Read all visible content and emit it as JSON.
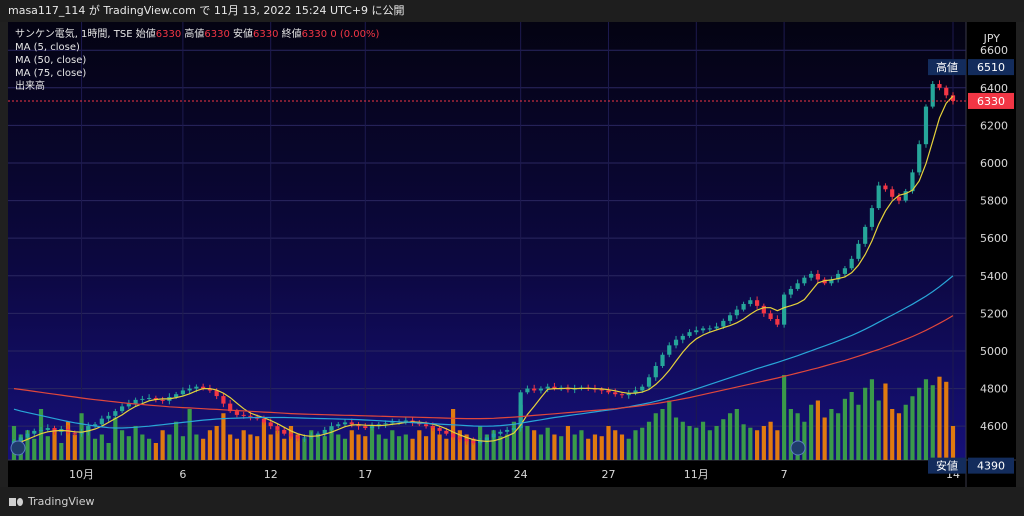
{
  "header": {
    "publish_line": "masa117_114 が TradingView.com で 11月 13, 2022 15:24 UTC+9 に公開"
  },
  "legend": {
    "symbol_line": "サンケン電気, 1時間, TSE",
    "ohlc": [
      {
        "label": "始値",
        "value": "6330"
      },
      {
        "label": "高値",
        "value": "6330"
      },
      {
        "label": "安値",
        "value": "6330"
      },
      {
        "label": "終値",
        "value": "6330"
      }
    ],
    "change": "0 (0.00%)",
    "indicators": [
      "MA (5, close)",
      "MA (50, close)",
      "MA (75, close)",
      "出来高"
    ]
  },
  "footer": {
    "brand": "TradingView"
  },
  "chart_data": {
    "type": "candlestick",
    "symbol": "サンケン電気",
    "interval": "1時間",
    "exchange": "TSE",
    "currency": "JPY",
    "ylim": [
      4420,
      6750
    ],
    "y_ticks": [
      4600,
      4800,
      5000,
      5200,
      5400,
      5600,
      5800,
      6000,
      6200,
      6400,
      6600
    ],
    "x_ticks": [
      {
        "label": "10月",
        "index": 10
      },
      {
        "label": "6",
        "index": 25
      },
      {
        "label": "12",
        "index": 38
      },
      {
        "label": "17",
        "index": 52
      },
      {
        "label": "24",
        "index": 75
      },
      {
        "label": "27",
        "index": 88
      },
      {
        "label": "11月",
        "index": 101
      },
      {
        "label": "7",
        "index": 114
      },
      {
        "label": "14",
        "index": 139
      }
    ],
    "price_labels": {
      "high_label": "高値",
      "high": 6510,
      "last": 6330,
      "low_label": "安値",
      "low": 4390
    },
    "close": [
      4520,
      4540,
      4560,
      4575,
      4580,
      4590,
      4570,
      4585,
      4565,
      4560,
      4570,
      4600,
      4610,
      4640,
      4655,
      4680,
      4705,
      4720,
      4740,
      4745,
      4750,
      4740,
      4735,
      4755,
      4770,
      4790,
      4800,
      4810,
      4800,
      4790,
      4760,
      4720,
      4680,
      4660,
      4655,
      4650,
      4640,
      4620,
      4600,
      4580,
      4560,
      4545,
      4535,
      4540,
      4550,
      4560,
      4580,
      4600,
      4610,
      4620,
      4610,
      4600,
      4590,
      4600,
      4610,
      4615,
      4620,
      4625,
      4630,
      4620,
      4610,
      4600,
      4590,
      4575,
      4560,
      4540,
      4530,
      4520,
      4510,
      4525,
      4540,
      4560,
      4570,
      4580,
      4590,
      4780,
      4800,
      4790,
      4800,
      4810,
      4800,
      4805,
      4795,
      4800,
      4805,
      4800,
      4795,
      4790,
      4780,
      4770,
      4765,
      4775,
      4790,
      4810,
      4860,
      4920,
      4980,
      5030,
      5060,
      5080,
      5100,
      5110,
      5120,
      5120,
      5130,
      5160,
      5190,
      5220,
      5250,
      5270,
      5240,
      5200,
      5170,
      5140,
      5300,
      5330,
      5360,
      5390,
      5410,
      5380,
      5360,
      5380,
      5410,
      5440,
      5490,
      5570,
      5660,
      5760,
      5880,
      5860,
      5820,
      5800,
      5850,
      5950,
      6100,
      6300,
      6420,
      6400,
      6360,
      6330
    ],
    "volume": [
      40,
      30,
      35,
      25,
      60,
      28,
      35,
      20,
      45,
      30,
      55,
      40,
      25,
      30,
      20,
      50,
      35,
      28,
      40,
      30,
      25,
      20,
      35,
      30,
      45,
      28,
      60,
      30,
      25,
      35,
      40,
      55,
      30,
      25,
      35,
      30,
      28,
      45,
      30,
      35,
      25,
      40,
      30,
      25,
      35,
      30,
      28,
      38,
      30,
      25,
      35,
      30,
      28,
      40,
      30,
      25,
      35,
      28,
      30,
      25,
      35,
      28,
      40,
      30,
      25,
      60,
      35,
      30,
      25,
      40,
      30,
      35,
      28,
      30,
      45,
      65,
      40,
      35,
      30,
      38,
      30,
      28,
      40,
      30,
      35,
      25,
      30,
      28,
      40,
      35,
      30,
      25,
      35,
      38,
      45,
      55,
      60,
      70,
      50,
      45,
      40,
      38,
      45,
      35,
      40,
      48,
      55,
      60,
      42,
      38,
      35,
      40,
      45,
      35,
      100,
      60,
      55,
      45,
      65,
      70,
      50,
      60,
      55,
      72,
      80,
      65,
      85,
      95,
      70,
      90,
      60,
      55,
      65,
      75,
      85,
      95,
      88,
      98,
      92,
      40
    ],
    "series": [
      {
        "name": "MA (5, close)",
        "type": "line",
        "color": "#e6d23a",
        "values": [
          4500,
          4515,
          4530,
          4545,
          4560,
          4570,
          4575,
          4577,
          4575,
          4570,
          4568,
          4575,
          4585,
          4600,
          4620,
          4640,
          4660,
          4685,
          4705,
          4720,
          4735,
          4742,
          4745,
          4745,
          4752,
          4760,
          4772,
          4788,
          4800,
          4800,
          4792,
          4776,
          4752,
          4722,
          4693,
          4670,
          4656,
          4645,
          4630,
          4613,
          4594,
          4575,
          4560,
          4550,
          4546,
          4548,
          4557,
          4568,
          4583,
          4597,
          4606,
          4608,
          4605,
          4604,
          4603,
          4605,
          4610,
          4614,
          4620,
          4623,
          4621,
          4617,
          4611,
          4600,
          4586,
          4569,
          4553,
          4540,
          4528,
          4522,
          4519,
          4522,
          4532,
          4547,
          4563,
          4606,
          4662,
          4706,
          4752,
          4796,
          4800,
          4800,
          4802,
          4800,
          4801,
          4801,
          4800,
          4798,
          4794,
          4788,
          4780,
          4775,
          4776,
          4781,
          4795,
          4822,
          4856,
          4897,
          4946,
          4994,
          5034,
          5065,
          5085,
          5100,
          5112,
          5124,
          5135,
          5150,
          5170,
          5195,
          5218,
          5230,
          5230,
          5214,
          5230,
          5241,
          5253,
          5274,
          5318,
          5362,
          5374,
          5378,
          5385,
          5394,
          5417,
          5456,
          5513,
          5585,
          5674,
          5744,
          5797,
          5828,
          5837,
          5855,
          5904,
          5997,
          6116,
          6240,
          6318,
          6356
        ]
      },
      {
        "name": "MA (50, close)",
        "type": "line",
        "color": "#29a6d8",
        "values": [
          4690,
          4680,
          4672,
          4664,
          4656,
          4648,
          4640,
          4632,
          4625,
          4618,
          4612,
          4606,
          4601,
          4596,
          4592,
          4590,
          4590,
          4592,
          4594,
          4597,
          4600,
          4604,
          4608,
          4612,
          4616,
          4620,
          4624,
          4628,
          4632,
          4635,
          4638,
          4640,
          4642,
          4643,
          4644,
          4645,
          4646,
          4646,
          4646,
          4646,
          4646,
          4645,
          4644,
          4643,
          4642,
          4641,
          4640,
          4639,
          4638,
          4637,
          4636,
          4635,
          4633,
          4631,
          4629,
          4627,
          4625,
          4623,
          4621,
          4619,
          4617,
          4615,
          4613,
          4611,
          4609,
          4607,
          4605,
          4603,
          4601,
          4600,
          4600,
          4601,
          4603,
          4606,
          4610,
          4616,
          4622,
          4628,
          4634,
          4640,
          4646,
          4651,
          4656,
          4661,
          4666,
          4671,
          4676,
          4681,
          4686,
          4691,
          4697,
          4703,
          4710,
          4717,
          4724,
          4732,
          4741,
          4751,
          4762,
          4774,
          4786,
          4798,
          4810,
          4822,
          4834,
          4846,
          4858,
          4870,
          4882,
          4894,
          4906,
          4917,
          4928,
          4939,
          4951,
          4963,
          4975,
          4988,
          5001,
          5014,
          5027,
          5040,
          5054,
          5068,
          5083,
          5099,
          5116,
          5134,
          5153,
          5172,
          5191,
          5210,
          5229,
          5249,
          5270,
          5292,
          5316,
          5342,
          5370,
          5400
        ]
      },
      {
        "name": "MA (75, close)",
        "type": "line",
        "color": "#e0473c",
        "values": [
          4800,
          4795,
          4790,
          4785,
          4780,
          4775,
          4770,
          4765,
          4760,
          4755,
          4750,
          4745,
          4741,
          4737,
          4733,
          4729,
          4725,
          4721,
          4718,
          4715,
          4712,
          4709,
          4706,
          4703,
          4701,
          4699,
          4697,
          4695,
          4693,
          4691,
          4689,
          4687,
          4685,
          4683,
          4681,
          4679,
          4677,
          4675,
          4673,
          4671,
          4669,
          4667,
          4665,
          4664,
          4663,
          4662,
          4661,
          4660,
          4659,
          4658,
          4657,
          4656,
          4655,
          4654,
          4653,
          4652,
          4651,
          4650,
          4649,
          4648,
          4647,
          4646,
          4645,
          4644,
          4643,
          4642,
          4641,
          4640,
          4640,
          4640,
          4641,
          4642,
          4644,
          4646,
          4648,
          4651,
          4654,
          4657,
          4660,
          4663,
          4666,
          4669,
          4672,
          4675,
          4678,
          4681,
          4684,
          4687,
          4690,
          4693,
          4697,
          4701,
          4705,
          4710,
          4715,
          4720,
          4726,
          4732,
          4738,
          4745,
          4752,
          4760,
          4768,
          4776,
          4784,
          4792,
          4800,
          4808,
          4816,
          4824,
          4832,
          4840,
          4848,
          4856,
          4865,
          4874,
          4883,
          4892,
          4901,
          4910,
          4920,
          4930,
          4940,
          4950,
          4961,
          4972,
          4984,
          4996,
          5008,
          5021,
          5034,
          5048,
          5062,
          5077,
          5093,
          5110,
          5128,
          5147,
          5167,
          5188
        ]
      }
    ]
  }
}
